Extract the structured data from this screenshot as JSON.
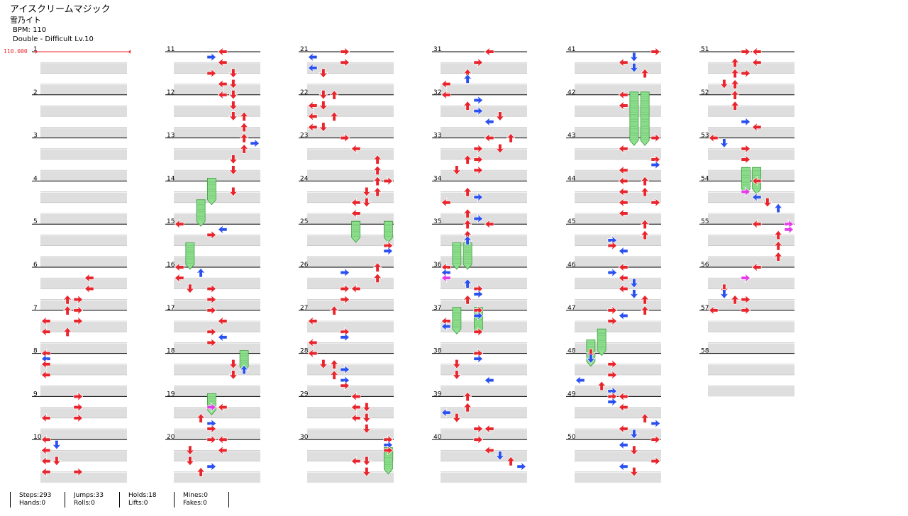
{
  "song": {
    "title": "アイスクリームマジック",
    "artist": "雪乃イト",
    "bpm_text": "BPM: 110",
    "difficulty_text": "Double - Difficult  Lv.10"
  },
  "bpm_marker": {
    "label": "110.000"
  },
  "chart": {
    "measure_numbers": [
      "1",
      "2",
      "3",
      "4",
      "5",
      "6",
      "7",
      "8",
      "9",
      "10",
      "11",
      "12",
      "13",
      "14",
      "15",
      "16",
      "17",
      "18",
      "19",
      "20",
      "21",
      "22",
      "23",
      "24",
      "25",
      "26",
      "27",
      "28",
      "29",
      "30",
      "31",
      "32",
      "33",
      "34",
      "35",
      "36",
      "37",
      "38",
      "39",
      "40",
      "41",
      "42",
      "43",
      "44",
      "45",
      "46",
      "47",
      "48",
      "49",
      "50",
      "51",
      "52",
      "53",
      "54",
      "55",
      "56",
      "57",
      "58"
    ],
    "columns": 6,
    "measures_per_column": 10,
    "total_measures": 58,
    "lanes": 8,
    "colors": {
      "quarter": "#e8242c",
      "eighth": "#2b50f0",
      "sixteenth": "#e43ce8",
      "hold": "#8ee08e",
      "hold_border": "#3a9a3a",
      "row_band": "#dedede"
    },
    "notes": [
      [
        6,
        0.25,
        4
      ],
      [
        6,
        0.5,
        4
      ],
      [
        6,
        0.75,
        2
      ],
      [
        6,
        0.75,
        3
      ],
      [
        7,
        0,
        2
      ],
      [
        7,
        0,
        3
      ],
      [
        7,
        0.25,
        0
      ],
      [
        7,
        0.25,
        3
      ],
      [
        7,
        0.5,
        0
      ],
      [
        7,
        0.5,
        2
      ],
      [
        8,
        0,
        0
      ],
      [
        8,
        0.125,
        0
      ],
      [
        8,
        0.25,
        0
      ],
      [
        8,
        0.5,
        0
      ],
      [
        9,
        0,
        3
      ],
      [
        9,
        0.25,
        3
      ],
      [
        9,
        0.5,
        0
      ],
      [
        9,
        0.5,
        3
      ],
      [
        10,
        0,
        0
      ],
      [
        10,
        0.125,
        1
      ],
      [
        10,
        0.25,
        0
      ],
      [
        10,
        0.5,
        0
      ],
      [
        10,
        0.5,
        1
      ],
      [
        10,
        0.75,
        0
      ],
      [
        10,
        0.75,
        3
      ],
      [
        11,
        0,
        4
      ],
      [
        11,
        0.125,
        3
      ],
      [
        11,
        0.25,
        4
      ],
      [
        11,
        0.5,
        3
      ],
      [
        11,
        0.5,
        5
      ],
      [
        11,
        0.75,
        4
      ],
      [
        11,
        0.75,
        5
      ],
      [
        12,
        0,
        4
      ],
      [
        12,
        0,
        5
      ],
      [
        12,
        0.25,
        5
      ],
      [
        12,
        0.5,
        5
      ],
      [
        12,
        0.5,
        6
      ],
      [
        12,
        0.75,
        6
      ],
      [
        13,
        0,
        6
      ],
      [
        13,
        0.125,
        7
      ],
      [
        13,
        0.25,
        6
      ],
      [
        13,
        0.5,
        5
      ],
      [
        13,
        0.75,
        5
      ],
      [
        14,
        0.25,
        5
      ],
      [
        15,
        0,
        0
      ],
      [
        15,
        0.25,
        3
      ],
      [
        15,
        0.125,
        4
      ],
      [
        16,
        0,
        0
      ],
      [
        16,
        0.125,
        2
      ],
      [
        16,
        0.25,
        0
      ],
      [
        16,
        0.5,
        1
      ],
      [
        16,
        0.5,
        3
      ],
      [
        16,
        0.75,
        3
      ],
      [
        17,
        0,
        3
      ],
      [
        17,
        0.25,
        4
      ],
      [
        17,
        0.5,
        3
      ],
      [
        17,
        0.625,
        4
      ],
      [
        17,
        0.75,
        3
      ],
      [
        18,
        0.25,
        5
      ],
      [
        18,
        0.375,
        6
      ],
      [
        18,
        0.5,
        5
      ],
      [
        19,
        0.25,
        4
      ],
      [
        19,
        0.5,
        2
      ],
      [
        19,
        0.625,
        3
      ],
      [
        19,
        0.75,
        3
      ],
      [
        20,
        0,
        3
      ],
      [
        20,
        0.25,
        1
      ],
      [
        20,
        0.5,
        1
      ],
      [
        20,
        0.625,
        3
      ],
      [
        20,
        0.75,
        2
      ],
      [
        20,
        0,
        4
      ],
      [
        20,
        0.25,
        4
      ],
      [
        21,
        0,
        3
      ],
      [
        21,
        0.125,
        0
      ],
      [
        21,
        0.25,
        3
      ],
      [
        21,
        0.375,
        0
      ],
      [
        21,
        0.5,
        1
      ],
      [
        22,
        0,
        1
      ],
      [
        22,
        0,
        2
      ],
      [
        22,
        0.25,
        0
      ],
      [
        22,
        0.25,
        1
      ],
      [
        22,
        0.5,
        0
      ],
      [
        22,
        0.5,
        2
      ],
      [
        22,
        0.75,
        0
      ],
      [
        22,
        0.75,
        1
      ],
      [
        23,
        0,
        3
      ],
      [
        23,
        0.25,
        4
      ],
      [
        23,
        0.5,
        6
      ],
      [
        23,
        0.75,
        6
      ],
      [
        24,
        0,
        6
      ],
      [
        24,
        0,
        7
      ],
      [
        24,
        0.25,
        5
      ],
      [
        24,
        0.25,
        6
      ],
      [
        24,
        0.5,
        4
      ],
      [
        24,
        0.5,
        5
      ],
      [
        24,
        0.75,
        4
      ],
      [
        25,
        0.5,
        7
      ],
      [
        25,
        0.625,
        7
      ],
      [
        26,
        0,
        6
      ],
      [
        26,
        0.125,
        3
      ],
      [
        26,
        0.25,
        6
      ],
      [
        26,
        0.5,
        3
      ],
      [
        26,
        0.5,
        4
      ],
      [
        26,
        0.75,
        3
      ],
      [
        27,
        0,
        2
      ],
      [
        27,
        0.25,
        0
      ],
      [
        27,
        0.5,
        3
      ],
      [
        27,
        0.625,
        3
      ],
      [
        27,
        0.75,
        0
      ],
      [
        28,
        0,
        0
      ],
      [
        28,
        0.25,
        1
      ],
      [
        28,
        0.25,
        2
      ],
      [
        28,
        0.375,
        3
      ],
      [
        28,
        0.5,
        2
      ],
      [
        28,
        0.625,
        3
      ],
      [
        28,
        0.75,
        3
      ],
      [
        29,
        0,
        4
      ],
      [
        29,
        0.25,
        4
      ],
      [
        29,
        0.25,
        5
      ],
      [
        29,
        0.5,
        4
      ],
      [
        29,
        0.5,
        5
      ],
      [
        29,
        0.75,
        5
      ],
      [
        30,
        0,
        7
      ],
      [
        30,
        0.125,
        7
      ],
      [
        30,
        0.25,
        7
      ],
      [
        30,
        0.5,
        4
      ],
      [
        30,
        0.5,
        5
      ],
      [
        30,
        0.75,
        5
      ],
      [
        31,
        0,
        4
      ],
      [
        31,
        0.25,
        3
      ],
      [
        31,
        0.5,
        2
      ],
      [
        31,
        0.625,
        2
      ],
      [
        31,
        0.75,
        0
      ],
      [
        32,
        0,
        0
      ],
      [
        32,
        0.125,
        3
      ],
      [
        32,
        0.25,
        2
      ],
      [
        32,
        0.375,
        3
      ],
      [
        32,
        0.5,
        5
      ],
      [
        32,
        0.625,
        4
      ],
      [
        33,
        0,
        4
      ],
      [
        33,
        0,
        6
      ],
      [
        33,
        0.25,
        3
      ],
      [
        33,
        0.25,
        5
      ],
      [
        33,
        0.5,
        2
      ],
      [
        33,
        0.5,
        3
      ],
      [
        33,
        0.75,
        1
      ],
      [
        33,
        0.75,
        3
      ],
      [
        34,
        0.25,
        2
      ],
      [
        34,
        0.375,
        3
      ],
      [
        34,
        0.5,
        0
      ],
      [
        34,
        0.75,
        2
      ],
      [
        34,
        0.875,
        3
      ],
      [
        35,
        0,
        2
      ],
      [
        35,
        0,
        4
      ],
      [
        35,
        0.25,
        2
      ],
      [
        35,
        0.375,
        2
      ],
      [
        36,
        0,
        0
      ],
      [
        36,
        0.125,
        0
      ],
      [
        36,
        0.375,
        2
      ],
      [
        36,
        0.5,
        3
      ],
      [
        36,
        0.625,
        3
      ],
      [
        36,
        0.75,
        2
      ],
      [
        37,
        0,
        3
      ],
      [
        37,
        0.125,
        3
      ],
      [
        37,
        0.25,
        0
      ],
      [
        37,
        0.375,
        0
      ],
      [
        37,
        0.5,
        3
      ],
      [
        38,
        0,
        3
      ],
      [
        38,
        0.125,
        3
      ],
      [
        38,
        0.25,
        1
      ],
      [
        38,
        0.5,
        1
      ],
      [
        38,
        0.625,
        4
      ],
      [
        39,
        0,
        2
      ],
      [
        39,
        0.25,
        2
      ],
      [
        39,
        0.375,
        0
      ],
      [
        39,
        0.5,
        1
      ],
      [
        39,
        0.75,
        3
      ],
      [
        39,
        0.75,
        4
      ],
      [
        40,
        0,
        3
      ],
      [
        40,
        0.25,
        4
      ],
      [
        40,
        0.375,
        5
      ],
      [
        40,
        0.5,
        6
      ],
      [
        40,
        0.625,
        7
      ],
      [
        41,
        0,
        7
      ],
      [
        41,
        0.125,
        5
      ],
      [
        41,
        0.25,
        4
      ],
      [
        41,
        0.375,
        5
      ],
      [
        41,
        0.5,
        6
      ],
      [
        42,
        0,
        4
      ],
      [
        42,
        0.25,
        4
      ],
      [
        43,
        0,
        7
      ],
      [
        43,
        0.25,
        4
      ],
      [
        43,
        0.5,
        7
      ],
      [
        43,
        0.625,
        7
      ],
      [
        43,
        0.75,
        4
      ],
      [
        44,
        0,
        4
      ],
      [
        44,
        0,
        6
      ],
      [
        44,
        0.25,
        4
      ],
      [
        44,
        0.25,
        6
      ],
      [
        44,
        0.5,
        4
      ],
      [
        44,
        0.5,
        7
      ],
      [
        44,
        0.75,
        4
      ],
      [
        45,
        0,
        6
      ],
      [
        45,
        0.25,
        6
      ],
      [
        45,
        0.375,
        3
      ],
      [
        45,
        0.5,
        3
      ],
      [
        45,
        0.625,
        4
      ],
      [
        46,
        0,
        4
      ],
      [
        46,
        0.125,
        3
      ],
      [
        46,
        0.25,
        4
      ],
      [
        46,
        0.375,
        5
      ],
      [
        46,
        0.5,
        4
      ],
      [
        46,
        0.625,
        5
      ],
      [
        46,
        0.75,
        6
      ],
      [
        47,
        0,
        3
      ],
      [
        47,
        0,
        6
      ],
      [
        47,
        0.125,
        4
      ],
      [
        47,
        0.25,
        3
      ],
      [
        48,
        0,
        1
      ],
      [
        48,
        0.125,
        1
      ],
      [
        48,
        0.25,
        3
      ],
      [
        48,
        0.5,
        3
      ],
      [
        48,
        0.625,
        0
      ],
      [
        48,
        0.75,
        2
      ],
      [
        48,
        0.875,
        3
      ],
      [
        49,
        0,
        3
      ],
      [
        49,
        0,
        4
      ],
      [
        49,
        0.125,
        3
      ],
      [
        49,
        0.25,
        4
      ],
      [
        49,
        0.5,
        6
      ],
      [
        49,
        0.625,
        7
      ],
      [
        49,
        0.75,
        4
      ],
      [
        49,
        0.875,
        5
      ],
      [
        50,
        0,
        7
      ],
      [
        50,
        0.125,
        4
      ],
      [
        50,
        0.25,
        5
      ],
      [
        50,
        0.5,
        7
      ],
      [
        50,
        0.625,
        4
      ],
      [
        50,
        0.75,
        5
      ],
      [
        51,
        0,
        3
      ],
      [
        51,
        0,
        4
      ],
      [
        51,
        0.25,
        2
      ],
      [
        51,
        0.25,
        4
      ],
      [
        51,
        0.5,
        2
      ],
      [
        51,
        0.5,
        3
      ],
      [
        51,
        0.75,
        1
      ],
      [
        51,
        0.75,
        2
      ],
      [
        52,
        0,
        2
      ],
      [
        52,
        0.25,
        2
      ],
      [
        52,
        0.625,
        3
      ],
      [
        52,
        0.75,
        4
      ],
      [
        53,
        0,
        0
      ],
      [
        53,
        0.125,
        1
      ],
      [
        53,
        0.25,
        3
      ],
      [
        53,
        0.5,
        3
      ],
      [
        54,
        0,
        4
      ],
      [
        54,
        0.375,
        4
      ],
      [
        54,
        0.5,
        5
      ],
      [
        54,
        0.625,
        6
      ],
      [
        55,
        0,
        4
      ],
      [
        55,
        0.25,
        6
      ],
      [
        55,
        0.5,
        6
      ],
      [
        55,
        0.75,
        6
      ],
      [
        56,
        0,
        4
      ],
      [
        56,
        0.25,
        3
      ],
      [
        56,
        0.5,
        1
      ],
      [
        56,
        0.625,
        1
      ],
      [
        56,
        0.75,
        2
      ],
      [
        56,
        0.75,
        3
      ],
      [
        57,
        0,
        0
      ],
      [
        57,
        0,
        3
      ]
    ],
    "mini": [
      [
        19,
        0.25,
        3
      ],
      [
        54,
        0.25,
        3
      ],
      [
        56,
        0.25,
        3
      ],
      [
        55,
        0,
        7
      ],
      [
        55,
        0.125,
        7
      ],
      [
        36,
        0.25,
        0
      ]
    ],
    "holds": [
      [
        14,
        0,
        3,
        0.5
      ],
      [
        14,
        0.5,
        2,
        0.5
      ],
      [
        15,
        0.5,
        1,
        0.5
      ],
      [
        18,
        0,
        6,
        0.375
      ],
      [
        19,
        0,
        3,
        0.375
      ],
      [
        25,
        0,
        4,
        0.375
      ],
      [
        25,
        0,
        7,
        0.375
      ],
      [
        30,
        0.25,
        7,
        0.5
      ],
      [
        35,
        0.5,
        1,
        0.5
      ],
      [
        35,
        0.5,
        2,
        0.5
      ],
      [
        37,
        0,
        1,
        0.5
      ],
      [
        37,
        0,
        3,
        0.5
      ],
      [
        42,
        0,
        5,
        1.125
      ],
      [
        42,
        0,
        6,
        1.125
      ],
      [
        47,
        0.5,
        2,
        0.5
      ],
      [
        47,
        0.75,
        1,
        0.5
      ],
      [
        53,
        0.75,
        3,
        0.5
      ],
      [
        53,
        0.75,
        4,
        0.5
      ]
    ]
  },
  "stats": {
    "steps": "Steps:293",
    "hands": "Hands:0",
    "jumps": "Jumps:33",
    "rolls": "Rolls:0",
    "holds": "Holds:18",
    "lifts": "Lifts:0",
    "mines": "Mines:0",
    "fakes": "Fakes:0"
  }
}
